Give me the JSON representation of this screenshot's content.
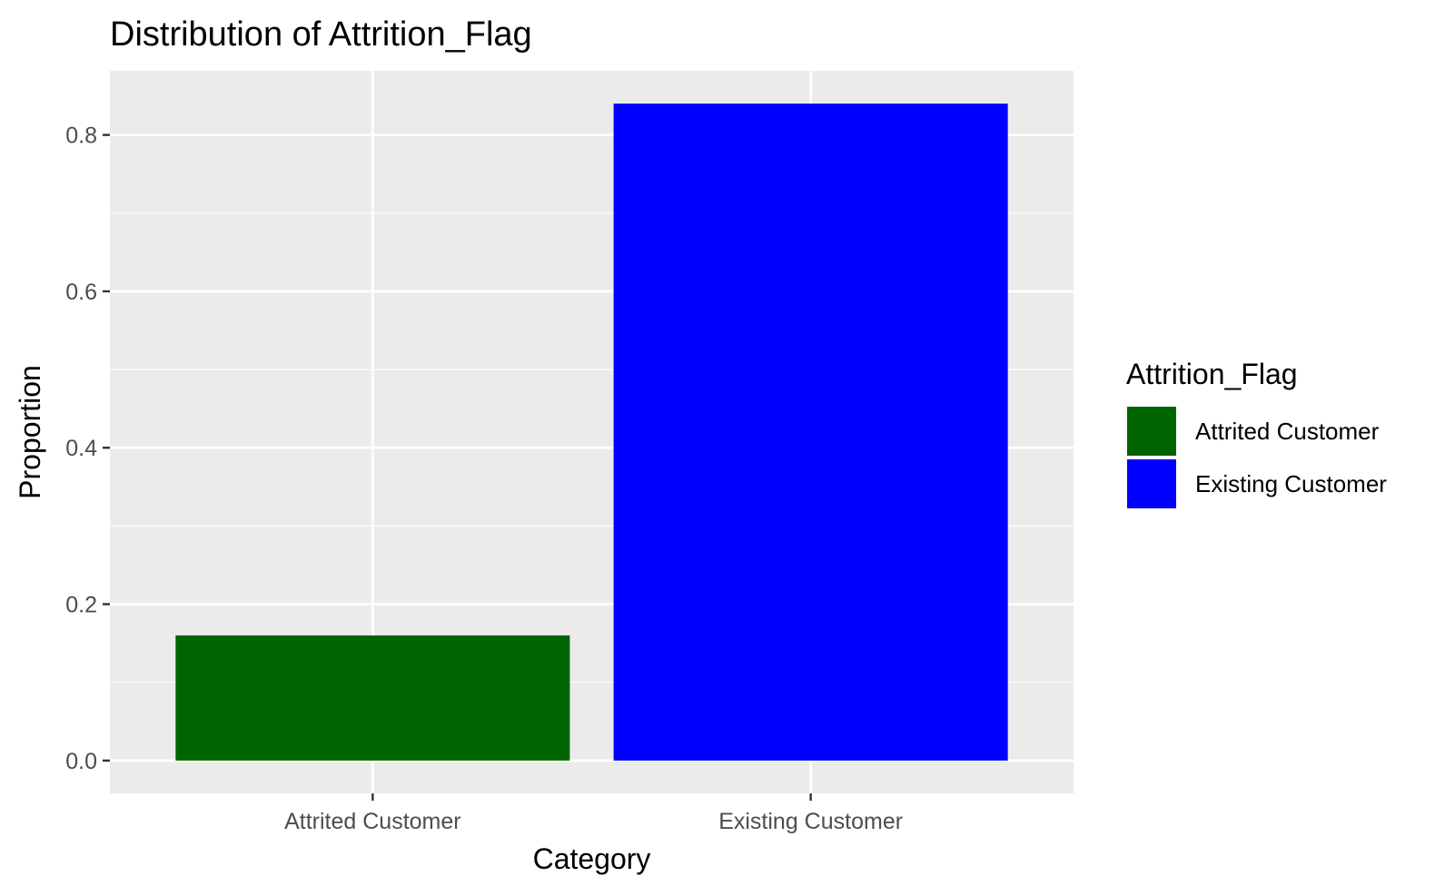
{
  "chart_data": {
    "type": "bar",
    "title": "Distribution of Attrition_Flag",
    "xlabel": "Category",
    "ylabel": "Proportion",
    "categories": [
      "Attrited Customer",
      "Existing Customer"
    ],
    "values": [
      0.16,
      0.84
    ],
    "colors": [
      "#006400",
      "#0000ff"
    ],
    "ylim": [
      -0.042,
      0.882
    ],
    "yticks": [
      0.0,
      0.2,
      0.4,
      0.6,
      0.8
    ],
    "ytick_labels": [
      "0.0",
      "0.2",
      "0.4",
      "0.6",
      "0.8"
    ],
    "grid": true,
    "panel_background": "#ebebeb",
    "grid_color": "#ffffff",
    "legend": {
      "title": "Attrition_Flag",
      "position": "right",
      "entries": [
        {
          "label": "Attrited Customer",
          "color": "#006400"
        },
        {
          "label": "Existing Customer",
          "color": "#0000ff"
        }
      ]
    }
  }
}
